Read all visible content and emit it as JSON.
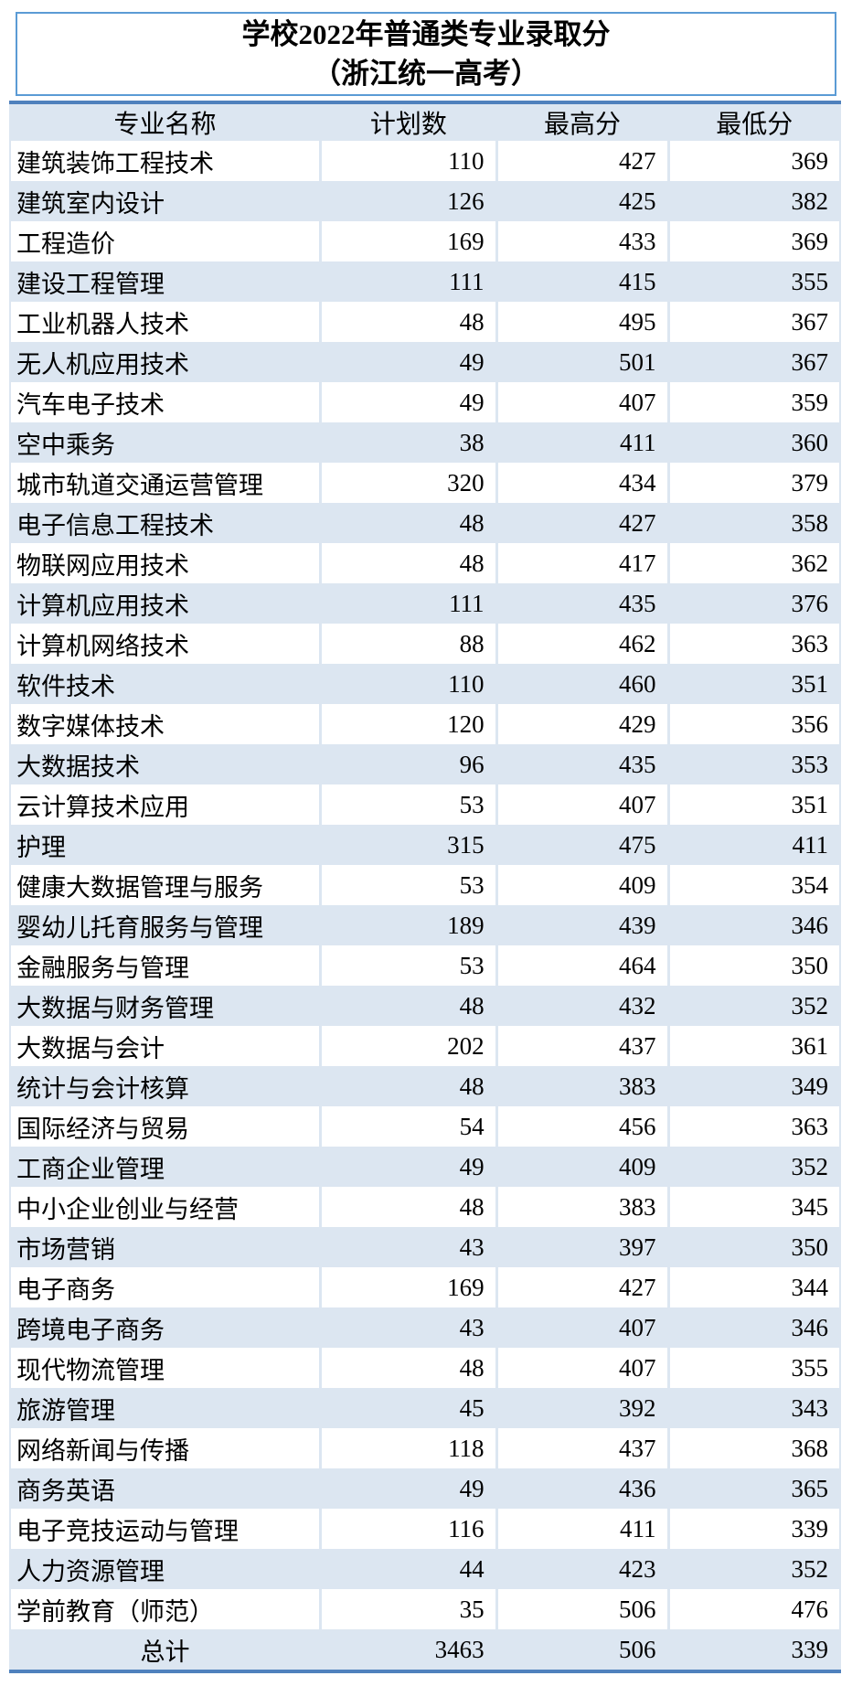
{
  "chart_data": {
    "type": "table",
    "title": "学校2022年普通类专业录取分",
    "subtitle": "（浙江统一高考）",
    "columns": [
      "专业名称",
      "计划数",
      "最高分",
      "最低分"
    ],
    "rows": [
      [
        "建筑装饰工程技术",
        110,
        427,
        369
      ],
      [
        "建筑室内设计",
        126,
        425,
        382
      ],
      [
        "工程造价",
        169,
        433,
        369
      ],
      [
        "建设工程管理",
        111,
        415,
        355
      ],
      [
        "工业机器人技术",
        48,
        495,
        367
      ],
      [
        "无人机应用技术",
        49,
        501,
        367
      ],
      [
        "汽车电子技术",
        49,
        407,
        359
      ],
      [
        "空中乘务",
        38,
        411,
        360
      ],
      [
        "城市轨道交通运营管理",
        320,
        434,
        379
      ],
      [
        "电子信息工程技术",
        48,
        427,
        358
      ],
      [
        "物联网应用技术",
        48,
        417,
        362
      ],
      [
        "计算机应用技术",
        111,
        435,
        376
      ],
      [
        "计算机网络技术",
        88,
        462,
        363
      ],
      [
        "软件技术",
        110,
        460,
        351
      ],
      [
        "数字媒体技术",
        120,
        429,
        356
      ],
      [
        "大数据技术",
        96,
        435,
        353
      ],
      [
        "云计算技术应用",
        53,
        407,
        351
      ],
      [
        "护理",
        315,
        475,
        411
      ],
      [
        "健康大数据管理与服务",
        53,
        409,
        354
      ],
      [
        "婴幼儿托育服务与管理",
        189,
        439,
        346
      ],
      [
        "金融服务与管理",
        53,
        464,
        350
      ],
      [
        "大数据与财务管理",
        48,
        432,
        352
      ],
      [
        "大数据与会计",
        202,
        437,
        361
      ],
      [
        "统计与会计核算",
        48,
        383,
        349
      ],
      [
        "国际经济与贸易",
        54,
        456,
        363
      ],
      [
        "工商企业管理",
        49,
        409,
        352
      ],
      [
        "中小企业创业与经营",
        48,
        383,
        345
      ],
      [
        "市场营销",
        43,
        397,
        350
      ],
      [
        "电子商务",
        169,
        427,
        344
      ],
      [
        "跨境电子商务",
        43,
        407,
        346
      ],
      [
        "现代物流管理",
        48,
        407,
        355
      ],
      [
        "旅游管理",
        45,
        392,
        343
      ],
      [
        "网络新闻与传播",
        118,
        437,
        368
      ],
      [
        "商务英语",
        49,
        436,
        365
      ],
      [
        "电子竞技运动与管理",
        116,
        411,
        339
      ],
      [
        "人力资源管理",
        44,
        423,
        352
      ],
      [
        "学前教育（师范）",
        35,
        506,
        476
      ]
    ],
    "total_row": [
      "总计",
      3463,
      506,
      339
    ]
  },
  "colors": {
    "thick_rule_blue": "#4f81bd",
    "title_box_border": "#5b9bd5",
    "row_alt_blue": "#dce6f1",
    "text": "#000000",
    "background": "#ffffff"
  }
}
